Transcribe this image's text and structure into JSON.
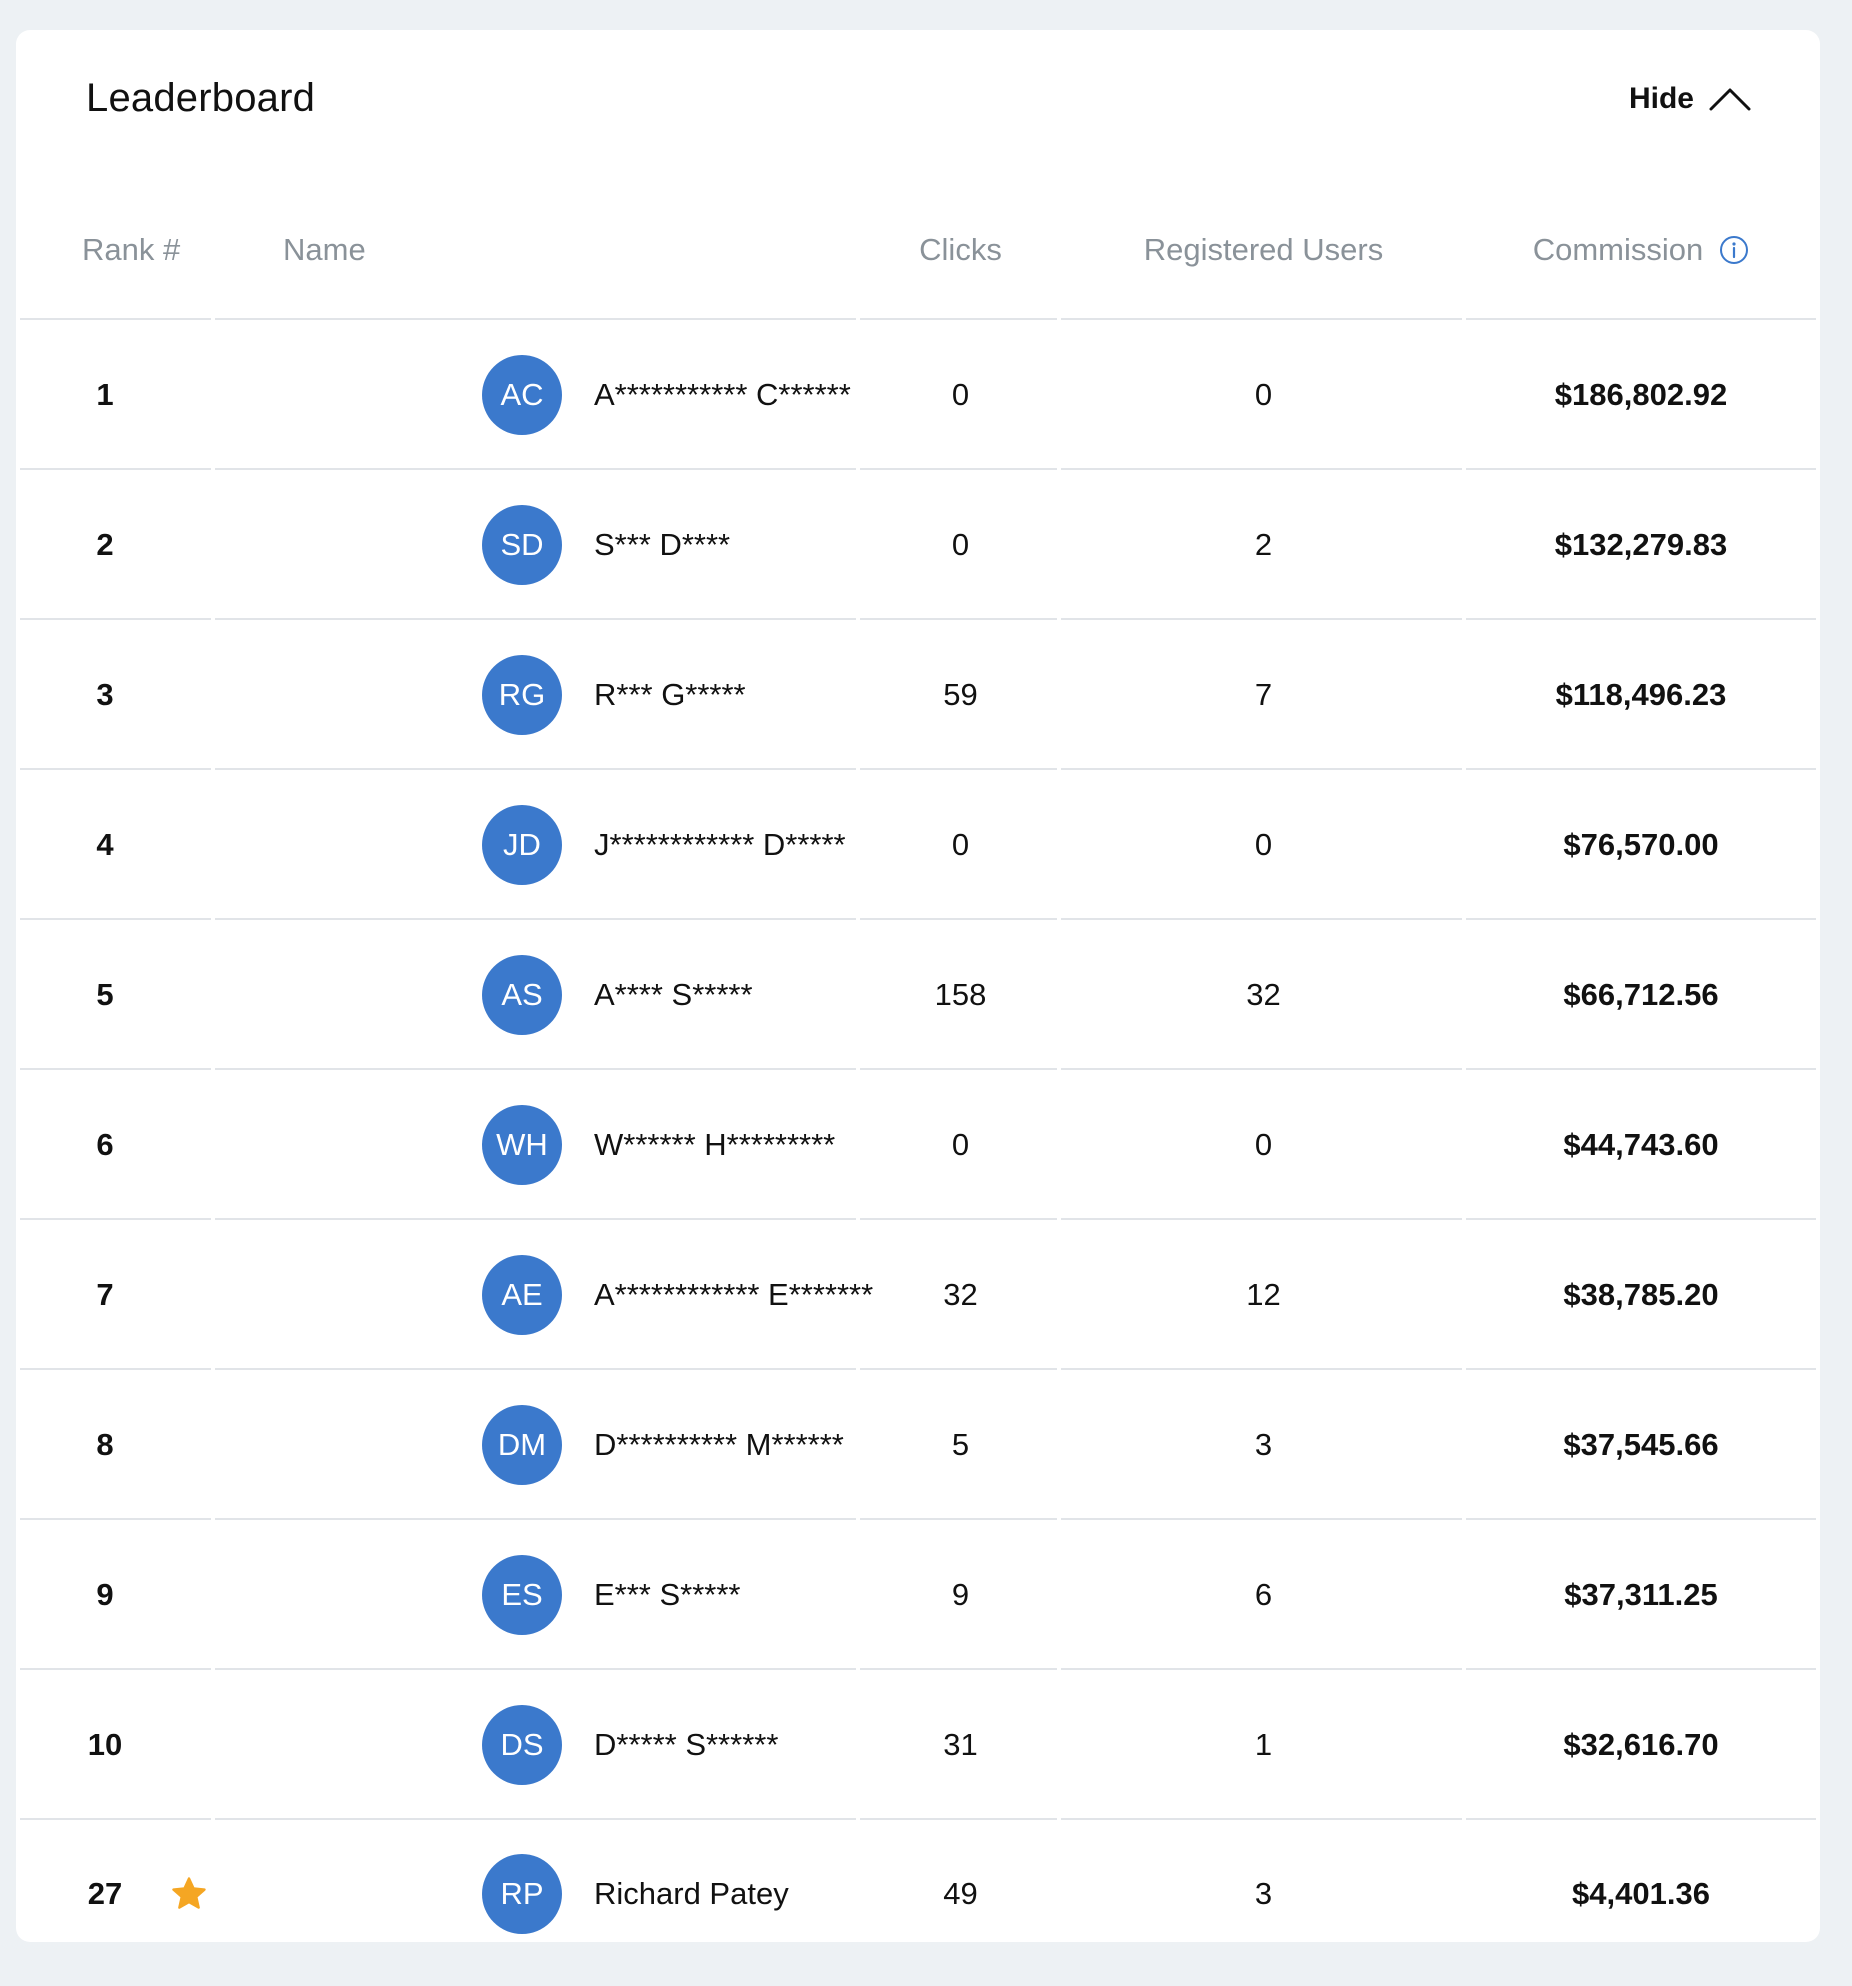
{
  "header": {
    "title": "Leaderboard",
    "hide_label": "Hide"
  },
  "columns": {
    "rank": "Rank #",
    "name": "Name",
    "clicks": "Clicks",
    "registered_users": "Registered Users",
    "commission": "Commission"
  },
  "colors": {
    "avatar_bg": "#3b79cc",
    "info_icon": "#3b79cc",
    "star": "#f5a623",
    "header_text": "#8a9299"
  },
  "rows": [
    {
      "rank": "1",
      "initials": "AC",
      "name": "A*********** C******",
      "clicks": "0",
      "registered_users": "0",
      "commission": "$186,802.92"
    },
    {
      "rank": "2",
      "initials": "SD",
      "name": "S*** D****",
      "clicks": "0",
      "registered_users": "2",
      "commission": "$132,279.83"
    },
    {
      "rank": "3",
      "initials": "RG",
      "name": "R*** G*****",
      "clicks": "59",
      "registered_users": "7",
      "commission": "$118,496.23"
    },
    {
      "rank": "4",
      "initials": "JD",
      "name": "J************ D*****",
      "clicks": "0",
      "registered_users": "0",
      "commission": "$76,570.00"
    },
    {
      "rank": "5",
      "initials": "AS",
      "name": "A**** S*****",
      "clicks": "158",
      "registered_users": "32",
      "commission": "$66,712.56"
    },
    {
      "rank": "6",
      "initials": "WH",
      "name": "W****** H*********",
      "clicks": "0",
      "registered_users": "0",
      "commission": "$44,743.60"
    },
    {
      "rank": "7",
      "initials": "AE",
      "name": "A************ E*******",
      "clicks": "32",
      "registered_users": "12",
      "commission": "$38,785.20"
    },
    {
      "rank": "8",
      "initials": "DM",
      "name": "D********** M******",
      "clicks": "5",
      "registered_users": "3",
      "commission": "$37,545.66"
    },
    {
      "rank": "9",
      "initials": "ES",
      "name": "E*** S*****",
      "clicks": "9",
      "registered_users": "6",
      "commission": "$37,311.25"
    },
    {
      "rank": "10",
      "initials": "DS",
      "name": "D***** S******",
      "clicks": "31",
      "registered_users": "1",
      "commission": "$32,616.70"
    },
    {
      "rank": "27",
      "initials": "RP",
      "name": "Richard Patey",
      "clicks": "49",
      "registered_users": "3",
      "commission": "$4,401.36",
      "current_user": true,
      "icon": "star-icon"
    }
  ]
}
